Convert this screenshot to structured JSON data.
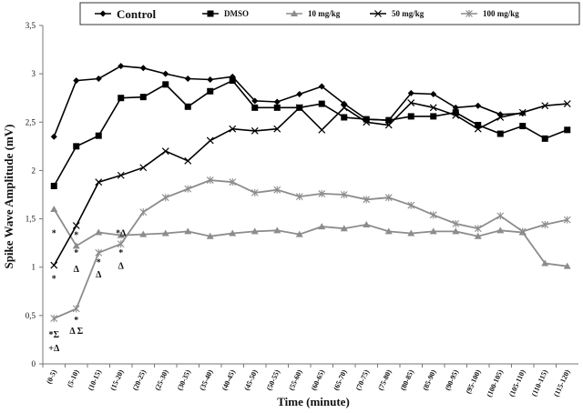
{
  "chart_data": {
    "type": "line",
    "xlabel": "Time (minute)",
    "ylabel": "Spike Wave Amplitude (mV)",
    "ylim": [
      0,
      3.5
    ],
    "yticks": [
      "0",
      "0,5",
      "1",
      "1,5",
      "2",
      "2,5",
      "3",
      "3,5"
    ],
    "grid": false,
    "legend_position": "top",
    "categories": [
      "(0-5)",
      "(5-10)",
      "(10-15)",
      "(15-20)",
      "(20-25)",
      "(25-30)",
      "(30-35)",
      "(35-40)",
      "(40-45)",
      "(45-50)",
      "(50-55)",
      "(55-60)",
      "(60-65)",
      "(65-70)",
      "(70-75)",
      "(75-80)",
      "(80-85)",
      "(85-90)",
      "(90-95)",
      "(95-100)",
      "(100-105)",
      "(105-110)",
      "(110-115)",
      "(115-120)"
    ],
    "series": [
      {
        "name": "Control",
        "marker": "diamond",
        "color": "#000000",
        "values": [
          2.35,
          2.93,
          2.95,
          3.08,
          3.06,
          3.0,
          2.95,
          2.94,
          2.97,
          2.72,
          2.71,
          2.79,
          2.87,
          2.69,
          2.53,
          2.52,
          2.8,
          2.79,
          2.65,
          2.67,
          2.58,
          2.59,
          null,
          null
        ]
      },
      {
        "name": "DMSO",
        "marker": "square",
        "color": "#000000",
        "values": [
          1.84,
          2.25,
          2.36,
          2.75,
          2.76,
          2.89,
          2.66,
          2.82,
          2.93,
          2.65,
          2.65,
          2.65,
          2.69,
          2.55,
          2.53,
          2.52,
          2.56,
          2.56,
          2.6,
          2.47,
          2.38,
          2.46,
          2.33,
          2.42
        ]
      },
      {
        "name": "10 mg/kg",
        "marker": "triangle",
        "color": "#8c8c8c",
        "values": [
          1.6,
          1.22,
          1.36,
          1.33,
          1.34,
          1.35,
          1.37,
          1.32,
          1.35,
          1.37,
          1.38,
          1.34,
          1.42,
          1.4,
          1.44,
          1.37,
          1.35,
          1.37,
          1.37,
          1.32,
          1.38,
          1.36,
          1.04,
          1.01
        ]
      },
      {
        "name": "50 mg/kg",
        "marker": "x",
        "color": "#000000",
        "values": [
          1.02,
          1.43,
          1.88,
          1.95,
          2.03,
          2.2,
          2.1,
          2.31,
          2.43,
          2.41,
          2.43,
          2.65,
          2.42,
          2.65,
          2.5,
          2.47,
          2.7,
          2.65,
          2.57,
          2.43,
          2.55,
          2.6,
          2.67,
          2.69
        ]
      },
      {
        "name": "100 mg/kg",
        "marker": "cross",
        "color": "#8c8c8c",
        "values": [
          0.47,
          0.57,
          1.15,
          1.24,
          1.57,
          1.72,
          1.81,
          1.9,
          1.88,
          1.77,
          1.8,
          1.73,
          1.76,
          1.75,
          1.7,
          1.72,
          1.64,
          1.54,
          1.45,
          1.4,
          1.53,
          1.37,
          1.44,
          1.49
        ]
      }
    ],
    "annotations": [
      {
        "text": "*",
        "category": "(0-5)",
        "y": 1.35
      },
      {
        "text": "*",
        "category": "(0-5)",
        "y": 0.88
      },
      {
        "text": "*Σ",
        "category": "(0-5)",
        "y": 0.3
      },
      {
        "text": "+Δ",
        "category": "(0-5)",
        "y": 0.16
      },
      {
        "text": "*",
        "category": "(5-10)",
        "y": 1.33
      },
      {
        "text": "*",
        "category": "(5-10)",
        "y": 1.15
      },
      {
        "text": "Δ",
        "category": "(5-10)",
        "y": 0.98
      },
      {
        "text": "*",
        "category": "(5-10)",
        "y": 0.45
      },
      {
        "text": "Δ Σ",
        "category": "(5-10)",
        "y": 0.34
      },
      {
        "text": "*",
        "category": "(10-15)",
        "y": 1.05
      },
      {
        "text": "Δ",
        "category": "(10-15)",
        "y": 0.92
      },
      {
        "text": "*Δ",
        "category": "(15-20)",
        "y": 1.35
      },
      {
        "text": "*",
        "category": "(15-20)",
        "y": 1.15
      },
      {
        "text": "Δ",
        "category": "(15-20)",
        "y": 1.01
      }
    ]
  }
}
